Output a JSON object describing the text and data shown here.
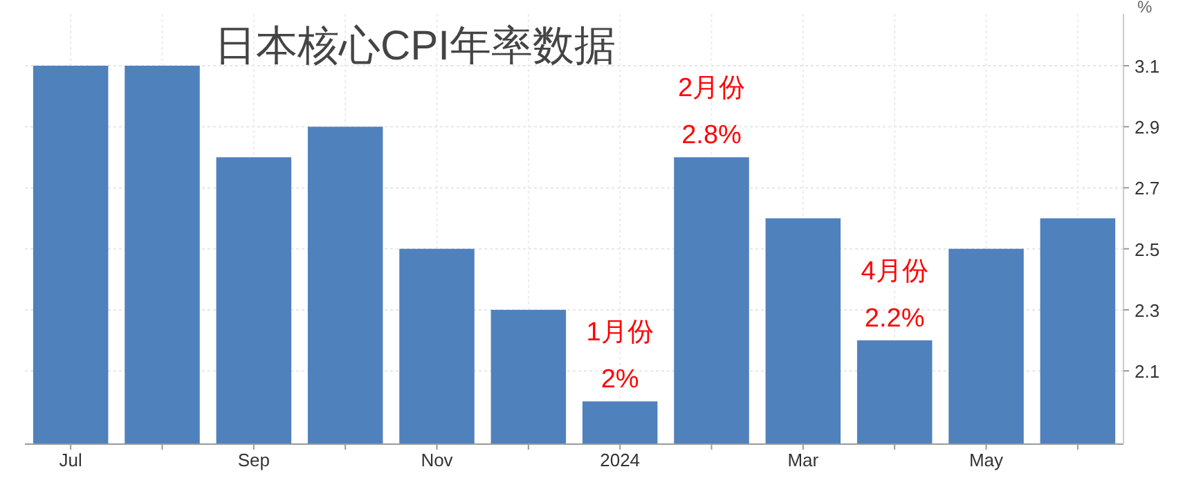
{
  "chart_data": {
    "type": "bar",
    "title": "日本核心CPI年率数据",
    "ylabel": "%",
    "categories": [
      "Jul",
      null,
      "Sep",
      null,
      "Nov",
      null,
      "2024",
      null,
      "Mar",
      null,
      "May",
      null
    ],
    "values": [
      3.1,
      3.1,
      2.8,
      2.9,
      2.5,
      2.3,
      2.0,
      2.8,
      2.6,
      2.2,
      2.5,
      2.6
    ],
    "value_labels": [
      null,
      null,
      null,
      null,
      null,
      null,
      "1月份\n2%",
      "2月份\n2.8%",
      null,
      "4月份\n2.2%",
      null,
      null
    ],
    "color": "#4f81bd",
    "ylim": [
      1.86,
      3.27
    ],
    "yticks": [
      2.1,
      2.3,
      2.5,
      2.7,
      2.9,
      3.1
    ],
    "grid": true
  }
}
